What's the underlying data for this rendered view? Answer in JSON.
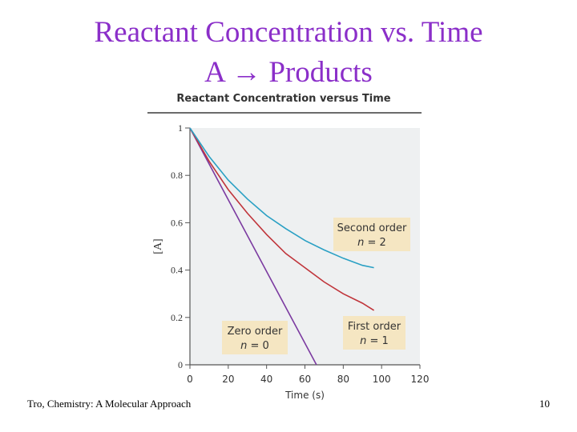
{
  "slide": {
    "title_line1": "Reactant Concentration vs. Time",
    "title_line2": "A → Products",
    "footer_left": "Tro, Chemistry: A Molecular Approach",
    "page_number": "10"
  },
  "colors": {
    "title": "#8b2fc9",
    "plot_bg": "#eef0f1",
    "zero_order": "#7b3aa0",
    "first_order": "#c0353b",
    "second_order": "#2aa0c4",
    "annotation_bg": "#f5e6c2"
  },
  "chart_data": {
    "type": "line",
    "title": "Reactant Concentration versus Time",
    "xlabel": "Time (s)",
    "ylabel": "[A]",
    "xlim": [
      0,
      120
    ],
    "ylim": [
      0,
      1
    ],
    "xticks": [
      "0",
      "20",
      "40",
      "60",
      "80",
      "100",
      "120"
    ],
    "yticks": [
      "0",
      "0.2",
      "0.4",
      "0.6",
      "0.8",
      "1"
    ],
    "series": [
      {
        "name": "Zero order",
        "order_label": "n = 0",
        "x": [
          0,
          66
        ],
        "y": [
          1.0,
          0.0
        ]
      },
      {
        "name": "First order",
        "order_label": "n = 1",
        "x": [
          0,
          10,
          20,
          30,
          40,
          50,
          60,
          70,
          80,
          90,
          96
        ],
        "y": [
          1.0,
          0.86,
          0.74,
          0.64,
          0.55,
          0.47,
          0.41,
          0.35,
          0.3,
          0.26,
          0.23
        ]
      },
      {
        "name": "Second order",
        "order_label": "n = 2",
        "x": [
          0,
          10,
          20,
          30,
          40,
          50,
          60,
          70,
          80,
          90,
          96
        ],
        "y": [
          1.0,
          0.88,
          0.78,
          0.7,
          0.63,
          0.575,
          0.525,
          0.485,
          0.45,
          0.42,
          0.41
        ]
      }
    ],
    "annotations": [
      {
        "series": "Zero order",
        "line1": "Zero order",
        "n_symbol": "n",
        "n_value": "= 0"
      },
      {
        "series": "First order",
        "line1": "First order",
        "n_symbol": "n",
        "n_value": "= 1"
      },
      {
        "series": "Second order",
        "line1": "Second order",
        "n_symbol": "n",
        "n_value": "= 2"
      }
    ]
  }
}
